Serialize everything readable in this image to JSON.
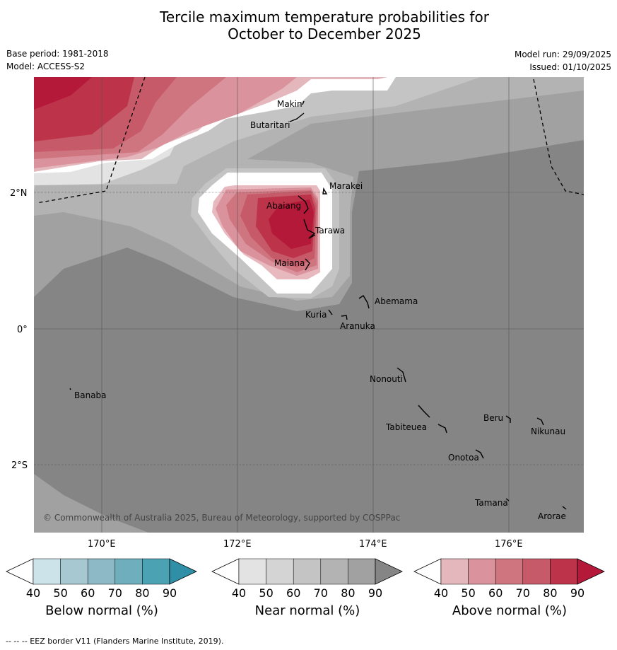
{
  "title_line1": "Tercile maximum temperature probabilities for",
  "title_line2": "October to December 2025",
  "base_period": "Base period: 1981-2018",
  "model": "Model: ACCESS-S2",
  "model_run": "Model run: 29/09/2025",
  "issued": "Issued: 01/10/2025",
  "copyright": "© Commonwealth of Australia 2025, Bureau of Meteorology, supported by COSPPac",
  "lat_labels": [
    "2°N",
    "0°",
    "2°S"
  ],
  "lon_labels": [
    "170°E",
    "172°E",
    "174°E",
    "176°E"
  ],
  "places": [
    "Makin",
    "Butaritari",
    "Marakei",
    "Abaiang",
    "Tarawa",
    "Maiana",
    "Abemama",
    "Kuria",
    "Aranuka",
    "Banaba",
    "Nonouti",
    "Tabiteuea",
    "Beru",
    "Nikunau",
    "Onotoa",
    "Tamana",
    "Arorae"
  ],
  "colorbars": [
    {
      "title": "Below normal (%)",
      "ticks": [
        "40",
        "50",
        "60",
        "70",
        "80",
        "90"
      ],
      "colors": [
        "#ffffff",
        "#cce3ea",
        "#a8c8d1",
        "#8cb9c5",
        "#6eaebd",
        "#4aa2b3",
        "#2f8fa6"
      ]
    },
    {
      "title": "Near normal (%)",
      "ticks": [
        "40",
        "50",
        "60",
        "70",
        "80",
        "90"
      ],
      "colors": [
        "#ffffff",
        "#e3e3e3",
        "#d4d4d4",
        "#c4c4c4",
        "#b3b3b3",
        "#a1a1a1",
        "#858585"
      ]
    },
    {
      "title": "Above normal (%)",
      "ticks": [
        "40",
        "50",
        "60",
        "70",
        "80",
        "90"
      ],
      "colors": [
        "#ffffff",
        "#e4b7bd",
        "#da939c",
        "#cf7580",
        "#c65a68",
        "#bd3349",
        "#b5193a"
      ]
    }
  ],
  "footnote": "--  --  -- EEZ border V11 (Flanders Marine Institute, 2019)."
}
